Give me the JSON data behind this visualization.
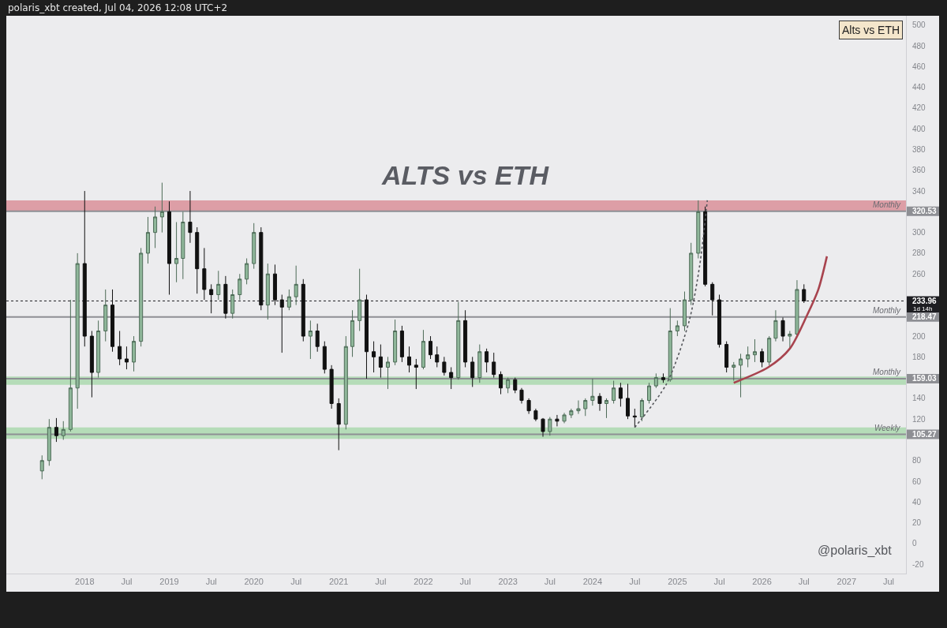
{
  "chart_data": {
    "type": "candlestick",
    "title": "ALTS vs ETH",
    "annotations": [
      "polaris_xbt created, Jul 04, 2026 12:08 UTC+2",
      "Alts vs ETH",
      "@polaris_xbt"
    ],
    "x": [
      "2017-07",
      "2017-08",
      "2017-09",
      "2017-10",
      "2017-11",
      "2017-12",
      "2018-01",
      "2018-02",
      "2018-03",
      "2018-04",
      "2018-05",
      "2018-06",
      "2018-07",
      "2018-08",
      "2018-09",
      "2018-10",
      "2018-11",
      "2018-12",
      "2019-01",
      "2019-02",
      "2019-03",
      "2019-04",
      "2019-05",
      "2019-06",
      "2019-07",
      "2019-08",
      "2019-09",
      "2019-10",
      "2019-11",
      "2019-12",
      "2020-01",
      "2020-02",
      "2020-03",
      "2020-04",
      "2020-05",
      "2020-06",
      "2020-07",
      "2020-08",
      "2020-09",
      "2020-10",
      "2020-11",
      "2020-12",
      "2021-01",
      "2021-02",
      "2021-03",
      "2021-04",
      "2021-05",
      "2021-06",
      "2021-07",
      "2021-08",
      "2021-09",
      "2021-10",
      "2021-11",
      "2021-12",
      "2022-01",
      "2022-02",
      "2022-03",
      "2022-04",
      "2022-05",
      "2022-06",
      "2022-07",
      "2022-08",
      "2022-09",
      "2022-10",
      "2022-11",
      "2022-12",
      "2023-01",
      "2023-02",
      "2023-03",
      "2023-04",
      "2023-05",
      "2023-06",
      "2023-07",
      "2023-08",
      "2023-09",
      "2023-10",
      "2023-11",
      "2023-12",
      "2024-01",
      "2024-02",
      "2024-03",
      "2024-04",
      "2024-05",
      "2024-06",
      "2024-07",
      "2024-08",
      "2024-09",
      "2024-10",
      "2024-11",
      "2024-12",
      "2025-01",
      "2025-02",
      "2025-03",
      "2025-04",
      "2025-05",
      "2025-06",
      "2025-07",
      "2025-08",
      "2025-09",
      "2025-10",
      "2025-11",
      "2025-12",
      "2026-01",
      "2026-02",
      "2026-03",
      "2026-04",
      "2026-05",
      "2026-06",
      "2026-07"
    ],
    "ohlc": [
      [
        70,
        85,
        62,
        80
      ],
      [
        80,
        120,
        75,
        112
      ],
      [
        112,
        121,
        98,
        104
      ],
      [
        104,
        118,
        100,
        110
      ],
      [
        110,
        235,
        108,
        150
      ],
      [
        150,
        280,
        130,
        270
      ],
      [
        270,
        340,
        190,
        200
      ],
      [
        200,
        205,
        141,
        165
      ],
      [
        165,
        215,
        160,
        205
      ],
      [
        205,
        245,
        195,
        230
      ],
      [
        230,
        245,
        185,
        190
      ],
      [
        190,
        205,
        172,
        178
      ],
      [
        178,
        190,
        168,
        175
      ],
      [
        175,
        200,
        166,
        195
      ],
      [
        195,
        285,
        190,
        280
      ],
      [
        280,
        315,
        270,
        300
      ],
      [
        300,
        325,
        285,
        315
      ],
      [
        315,
        348,
        300,
        320
      ],
      [
        320,
        330,
        240,
        270
      ],
      [
        270,
        310,
        252,
        275
      ],
      [
        275,
        320,
        255,
        310
      ],
      [
        310,
        340,
        290,
        300
      ],
      [
        300,
        305,
        241,
        265
      ],
      [
        265,
        285,
        235,
        245
      ],
      [
        245,
        250,
        222,
        240
      ],
      [
        240,
        263,
        235,
        250
      ],
      [
        250,
        258,
        217,
        222
      ],
      [
        222,
        245,
        217,
        240
      ],
      [
        240,
        260,
        235,
        255
      ],
      [
        255,
        275,
        250,
        270
      ],
      [
        270,
        309,
        265,
        300
      ],
      [
        300,
        305,
        225,
        230
      ],
      [
        230,
        270,
        216,
        260
      ],
      [
        260,
        269,
        230,
        235
      ],
      [
        235,
        240,
        184,
        228
      ],
      [
        228,
        245,
        225,
        238
      ],
      [
        238,
        268,
        230,
        250
      ],
      [
        250,
        255,
        195,
        200
      ],
      [
        200,
        215,
        178,
        205
      ],
      [
        205,
        212,
        185,
        190
      ],
      [
        190,
        195,
        164,
        168
      ],
      [
        168,
        172,
        130,
        135
      ],
      [
        135,
        140,
        90,
        115
      ],
      [
        115,
        200,
        110,
        190
      ],
      [
        190,
        225,
        180,
        215
      ],
      [
        215,
        265,
        205,
        235
      ],
      [
        235,
        240,
        159,
        185
      ],
      [
        185,
        195,
        165,
        180
      ],
      [
        180,
        192,
        160,
        170
      ],
      [
        170,
        180,
        149,
        175
      ],
      [
        175,
        216,
        172,
        205
      ],
      [
        205,
        210,
        175,
        180
      ],
      [
        180,
        190,
        165,
        172
      ],
      [
        172,
        178,
        149,
        170
      ],
      [
        170,
        206,
        168,
        195
      ],
      [
        195,
        200,
        178,
        182
      ],
      [
        182,
        190,
        170,
        175
      ],
      [
        175,
        180,
        162,
        165
      ],
      [
        165,
        170,
        149,
        160
      ],
      [
        160,
        233,
        158,
        215
      ],
      [
        215,
        225,
        170,
        175
      ],
      [
        175,
        180,
        151,
        160
      ],
      [
        160,
        192,
        155,
        185
      ],
      [
        185,
        188,
        165,
        175
      ],
      [
        175,
        184,
        160,
        163
      ],
      [
        163,
        166,
        144,
        150
      ],
      [
        150,
        160,
        145,
        158
      ],
      [
        158,
        160,
        145,
        148
      ],
      [
        148,
        150,
        135,
        138
      ],
      [
        138,
        140,
        125,
        128
      ],
      [
        128,
        130,
        118,
        120
      ],
      [
        120,
        121,
        103,
        108
      ],
      [
        108,
        122,
        104,
        120
      ],
      [
        120,
        124,
        113,
        118
      ],
      [
        118,
        126,
        116,
        124
      ],
      [
        124,
        130,
        121,
        128
      ],
      [
        128,
        138,
        125,
        130
      ],
      [
        130,
        140,
        123,
        138
      ],
      [
        138,
        159,
        133,
        142
      ],
      [
        142,
        145,
        128,
        135
      ],
      [
        135,
        140,
        121,
        138
      ],
      [
        138,
        157,
        135,
        150
      ],
      [
        150,
        155,
        132,
        140
      ],
      [
        140,
        154,
        120,
        123
      ],
      [
        123,
        130,
        112,
        122
      ],
      [
        122,
        140,
        118,
        138
      ],
      [
        138,
        155,
        135,
        152
      ],
      [
        152,
        164,
        150,
        160
      ],
      [
        160,
        164,
        155,
        158
      ],
      [
        158,
        227,
        156,
        205
      ],
      [
        205,
        215,
        200,
        210
      ],
      [
        210,
        243,
        205,
        235
      ],
      [
        235,
        290,
        230,
        280
      ],
      [
        280,
        331,
        275,
        320
      ],
      [
        320,
        325,
        248,
        250
      ],
      [
        250,
        252,
        220,
        235
      ],
      [
        235,
        240,
        189,
        192
      ],
      [
        192,
        195,
        165,
        170
      ],
      [
        170,
        175,
        157,
        172
      ],
      [
        172,
        183,
        141,
        178
      ],
      [
        178,
        190,
        170,
        182
      ],
      [
        182,
        197,
        175,
        185
      ],
      [
        185,
        188,
        170,
        175
      ],
      [
        175,
        200,
        172,
        198
      ],
      [
        198,
        225,
        195,
        215
      ],
      [
        215,
        218,
        195,
        200
      ],
      [
        200,
        205,
        188,
        202
      ],
      [
        202,
        254,
        200,
        245
      ],
      [
        245,
        250,
        232,
        233.96
      ]
    ],
    "series": [
      {
        "type": "line",
        "x": [
          "2024-07-01",
          "2024-11-15",
          "2025-02-20",
          "2025-04-07",
          "2025-05-10"
        ],
        "values": [
          112,
          154,
          214,
          268,
          331
        ],
        "color": "#55575c",
        "line_style": "dotted"
      },
      {
        "type": "line",
        "x": [
          "2025-09-01",
          "2026-01-28",
          "2026-05-01",
          "2026-07-14",
          "2026-09-01",
          "2026-10-08"
        ],
        "values": [
          155,
          170,
          188,
          220,
          245,
          277
        ],
        "color": "#a8434e",
        "line_style": "solid"
      }
    ],
    "bands": [
      {
        "axis": "y",
        "from": 320.53,
        "to": 331,
        "color": "#d98b93"
      },
      {
        "axis": "y",
        "from": 153,
        "to": 161,
        "color": "#a8d8aa"
      },
      {
        "axis": "y",
        "from": 101,
        "to": 112,
        "color": "#a8d8aa"
      }
    ],
    "ref_lines": [
      {
        "axis": "y",
        "value": 320.53,
        "label": "Monthly",
        "color": "#8e8f94"
      },
      {
        "axis": "y",
        "value": 218.47,
        "label": "Monthly",
        "color": "#8e8f94"
      },
      {
        "axis": "y",
        "value": 159.03,
        "label": "Monthly",
        "color": "#8e8f94"
      },
      {
        "axis": "y",
        "value": 105.27,
        "label": "Weekly",
        "color": "#8e8f94"
      },
      {
        "axis": "y",
        "value": 233.96,
        "label": "1d 14h",
        "color": "#1e1e22",
        "line_style": "dotted"
      }
    ],
    "xlim": [
      "2017-01-28",
      "2027-09-14"
    ],
    "xticks": [
      {
        "value": "2018-01-01",
        "label": "2018"
      },
      {
        "value": "2018-07-01",
        "label": "Jul"
      },
      {
        "value": "2019-01-01",
        "label": "2019"
      },
      {
        "value": "2019-07-01",
        "label": "Jul"
      },
      {
        "value": "2020-01-01",
        "label": "2020"
      },
      {
        "value": "2020-07-01",
        "label": "Jul"
      },
      {
        "value": "2021-01-01",
        "label": "2021"
      },
      {
        "value": "2021-07-01",
        "label": "Jul"
      },
      {
        "value": "2022-01-01",
        "label": "2022"
      },
      {
        "value": "2022-07-01",
        "label": "Jul"
      },
      {
        "value": "2023-01-01",
        "label": "2023"
      },
      {
        "value": "2023-07-01",
        "label": "Jul"
      },
      {
        "value": "2024-01-01",
        "label": "2024"
      },
      {
        "value": "2024-07-01",
        "label": "Jul"
      },
      {
        "value": "2025-01-01",
        "label": "2025"
      },
      {
        "value": "2025-07-01",
        "label": "Jul"
      },
      {
        "value": "2026-01-01",
        "label": "2026"
      },
      {
        "value": "2026-07-01",
        "label": "Jul"
      },
      {
        "value": "2027-01-01",
        "label": "2027"
      },
      {
        "value": "2027-07-01",
        "label": "Jul"
      }
    ],
    "ylim": [
      -29,
      509
    ],
    "yticks": [
      -20,
      0,
      20,
      40,
      60,
      80,
      105.27,
      120,
      140,
      159.03,
      180,
      200,
      218.47,
      233.96,
      260,
      280,
      300,
      320.53,
      340,
      360,
      380,
      400,
      420,
      440,
      460,
      480,
      500
    ]
  }
}
